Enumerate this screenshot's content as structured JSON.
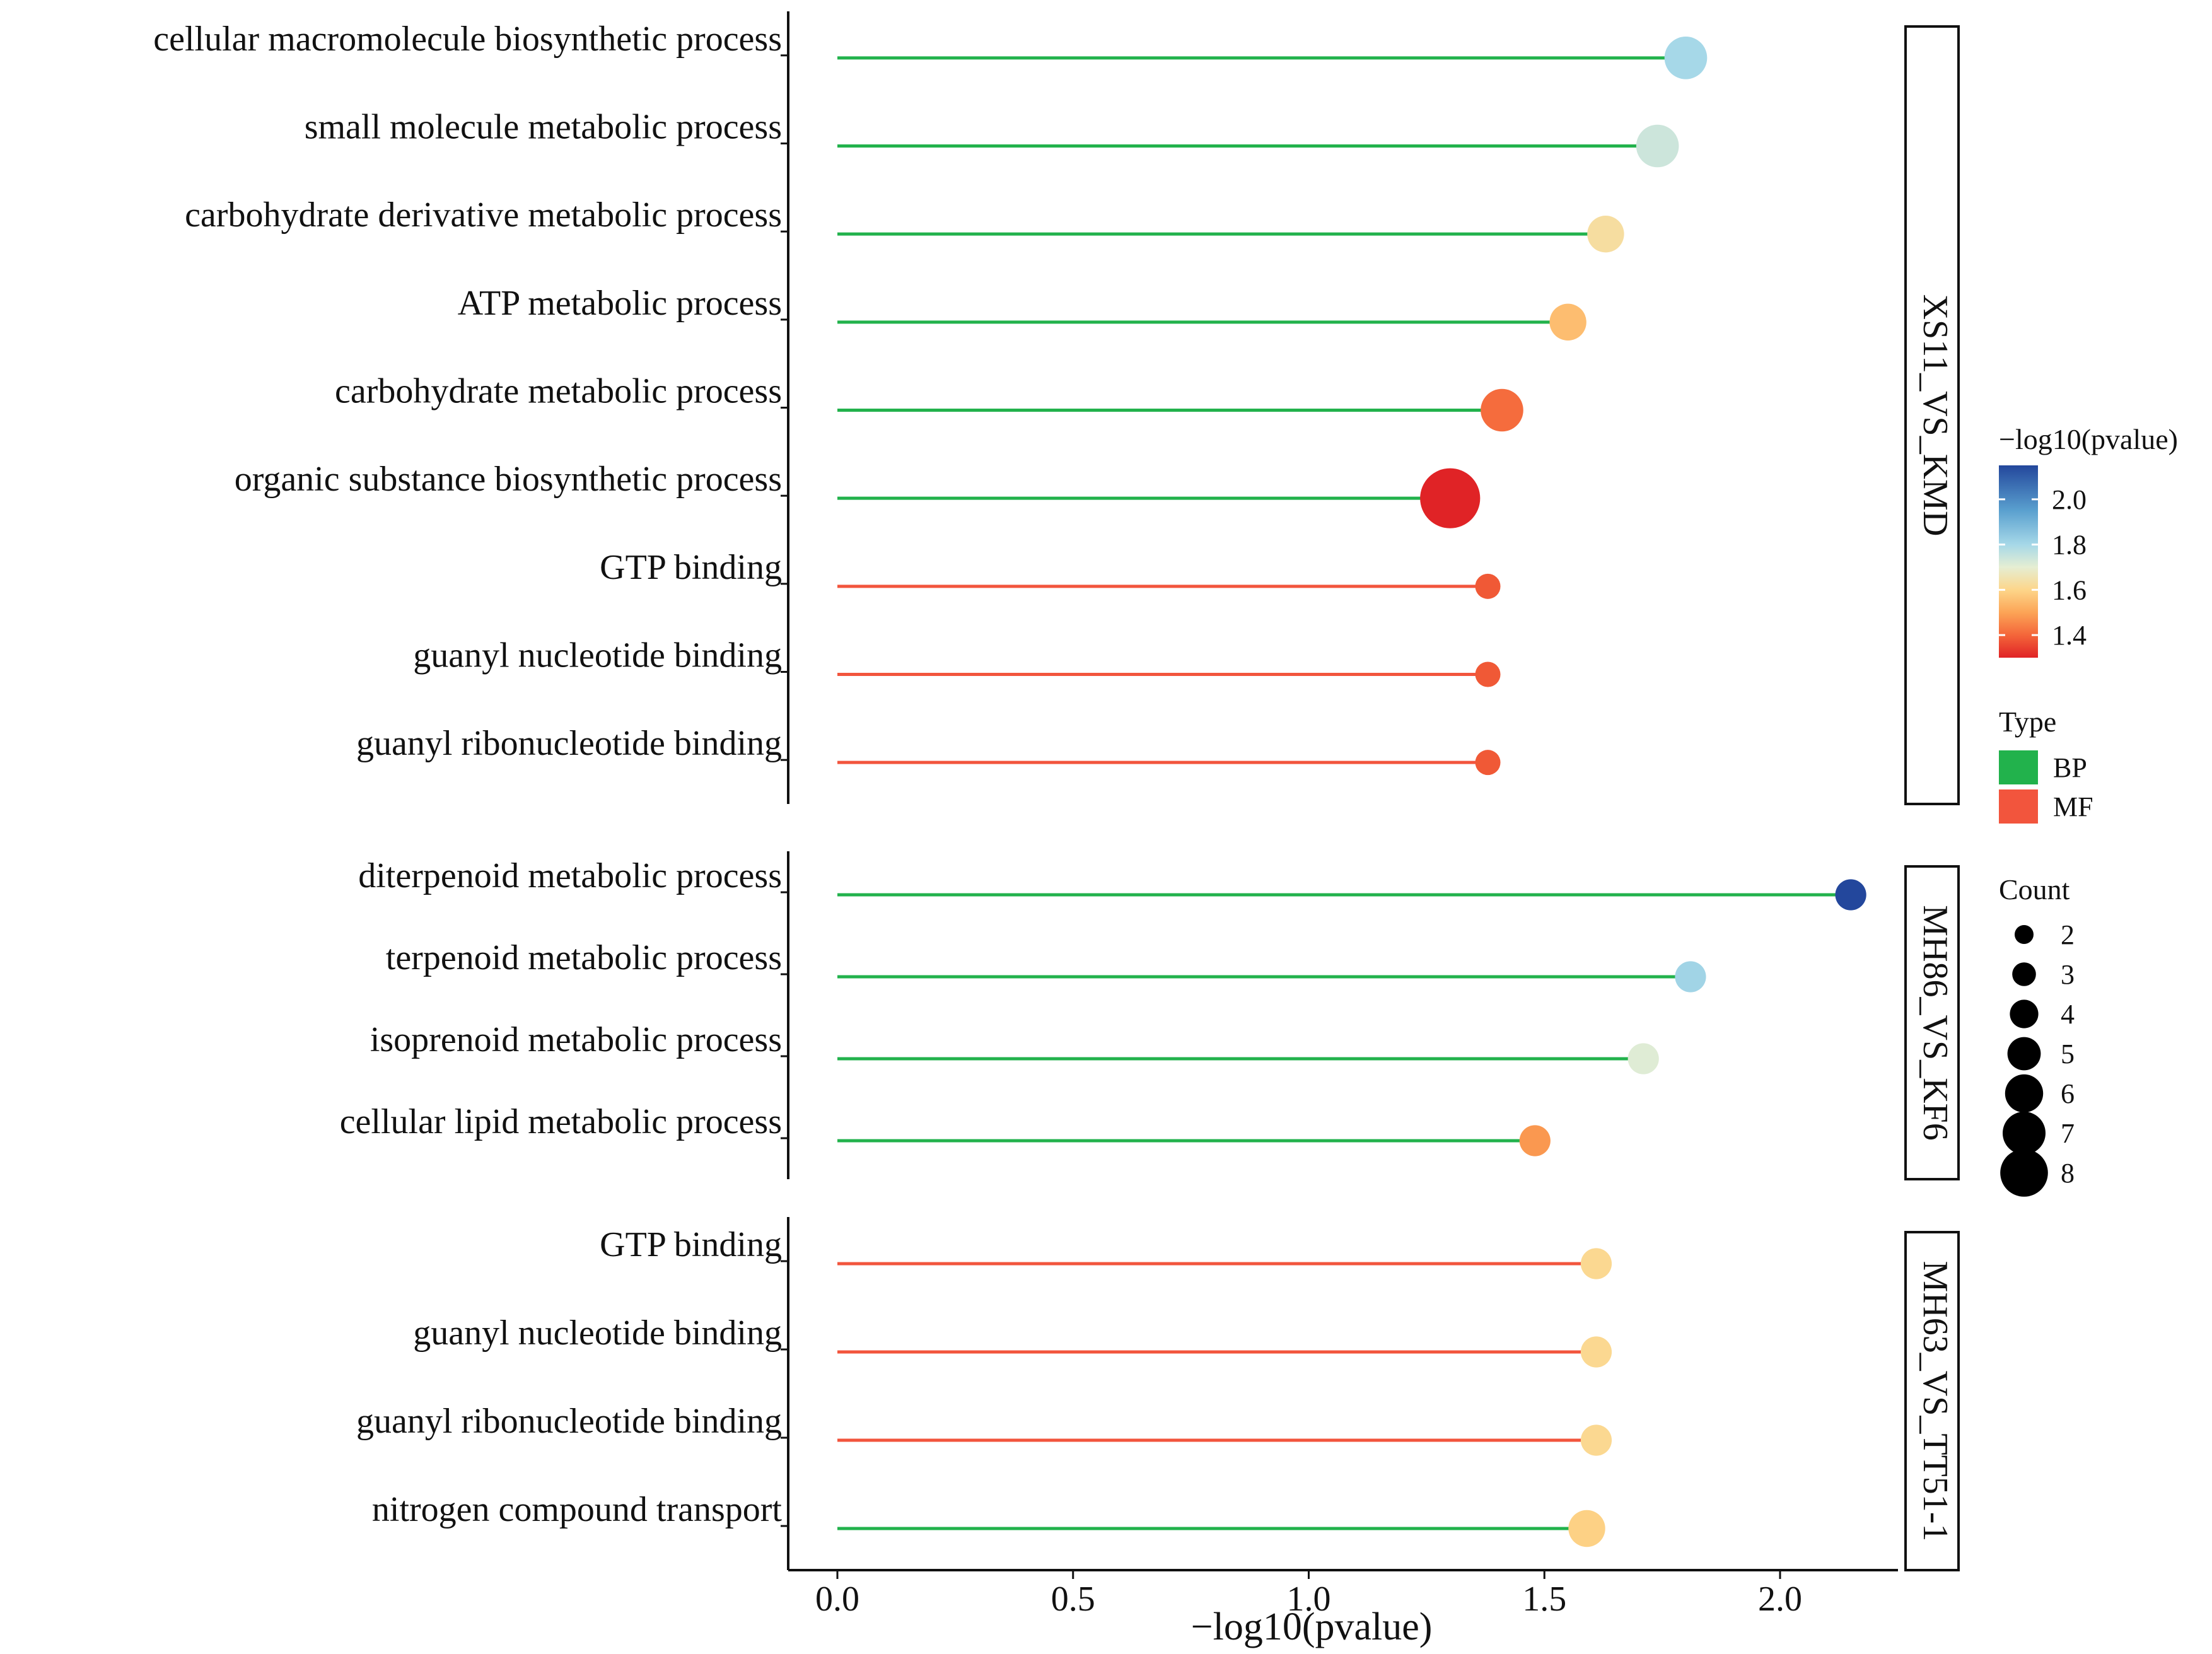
{
  "chart_data": {
    "type": "lollipop",
    "xlabel": "−log10(pvalue)",
    "xlim": [
      -0.1,
      2.25
    ],
    "xticks": [
      0.0,
      0.5,
      1.0,
      1.5,
      2.0
    ],
    "xtick_labels": [
      "0.0",
      "0.5",
      "1.0",
      "1.5",
      "2.0"
    ],
    "type_colors": {
      "BP": "#22b24c",
      "MF": "#f2553d"
    },
    "facets": [
      {
        "name": "XS11_VS_KMD",
        "terms": [
          {
            "term": "cellular macromolecule biosynthetic process",
            "type": "BP",
            "value": 1.8,
            "count": 5
          },
          {
            "term": "small molecule metabolic process",
            "type": "BP",
            "value": 1.74,
            "count": 5
          },
          {
            "term": "carbohydrate derivative metabolic process",
            "type": "BP",
            "value": 1.63,
            "count": 4
          },
          {
            "term": "ATP metabolic process",
            "type": "BP",
            "value": 1.55,
            "count": 4
          },
          {
            "term": "carbohydrate metabolic process",
            "type": "BP",
            "value": 1.41,
            "count": 5
          },
          {
            "term": "organic substance biosynthetic process",
            "type": "BP",
            "value": 1.3,
            "count": 8
          },
          {
            "term": "GTP binding",
            "type": "MF",
            "value": 1.38,
            "count": 2
          },
          {
            "term": "guanyl nucleotide binding",
            "type": "MF",
            "value": 1.38,
            "count": 2
          },
          {
            "term": "guanyl ribonucleotide binding",
            "type": "MF",
            "value": 1.38,
            "count": 2
          }
        ]
      },
      {
        "name": "MH86_VS_KF6",
        "terms": [
          {
            "term": "diterpenoid metabolic process",
            "type": "BP",
            "value": 2.15,
            "count": 3
          },
          {
            "term": "terpenoid metabolic process",
            "type": "BP",
            "value": 1.81,
            "count": 3
          },
          {
            "term": "isoprenoid metabolic process",
            "type": "BP",
            "value": 1.71,
            "count": 3
          },
          {
            "term": "cellular lipid metabolic process",
            "type": "BP",
            "value": 1.48,
            "count": 3
          }
        ]
      },
      {
        "name": "MH63_VS_TT51-1",
        "terms": [
          {
            "term": "GTP binding",
            "type": "MF",
            "value": 1.61,
            "count": 3
          },
          {
            "term": "guanyl nucleotide binding",
            "type": "MF",
            "value": 1.61,
            "count": 3
          },
          {
            "term": "guanyl ribonucleotide binding",
            "type": "MF",
            "value": 1.61,
            "count": 3
          },
          {
            "term": "nitrogen compound transport",
            "type": "BP",
            "value": 1.59,
            "count": 4
          }
        ]
      }
    ],
    "legend": {
      "color_title": "−log10(pvalue)",
      "color_range": [
        1.3,
        2.15
      ],
      "color_ticks": [
        2.0,
        1.8,
        1.6,
        1.4
      ],
      "color_tick_labels": [
        "2.0",
        "1.8",
        "1.6",
        "1.4"
      ],
      "color_stops": [
        {
          "value": 1.3,
          "color": "#e02326"
        },
        {
          "value": 1.4,
          "color": "#f4663a"
        },
        {
          "value": 1.5,
          "color": "#fca456"
        },
        {
          "value": 1.6,
          "color": "#fdd68a"
        },
        {
          "value": 1.7,
          "color": "#e5eed3"
        },
        {
          "value": 1.8,
          "color": "#a6d8e8"
        },
        {
          "value": 1.95,
          "color": "#5aa0cf"
        },
        {
          "value": 2.15,
          "color": "#23479c"
        }
      ],
      "type_title": "Type",
      "type_items": [
        "BP",
        "MF"
      ],
      "count_title": "Count",
      "count_items": [
        2,
        3,
        4,
        5,
        6,
        7,
        8
      ]
    }
  }
}
